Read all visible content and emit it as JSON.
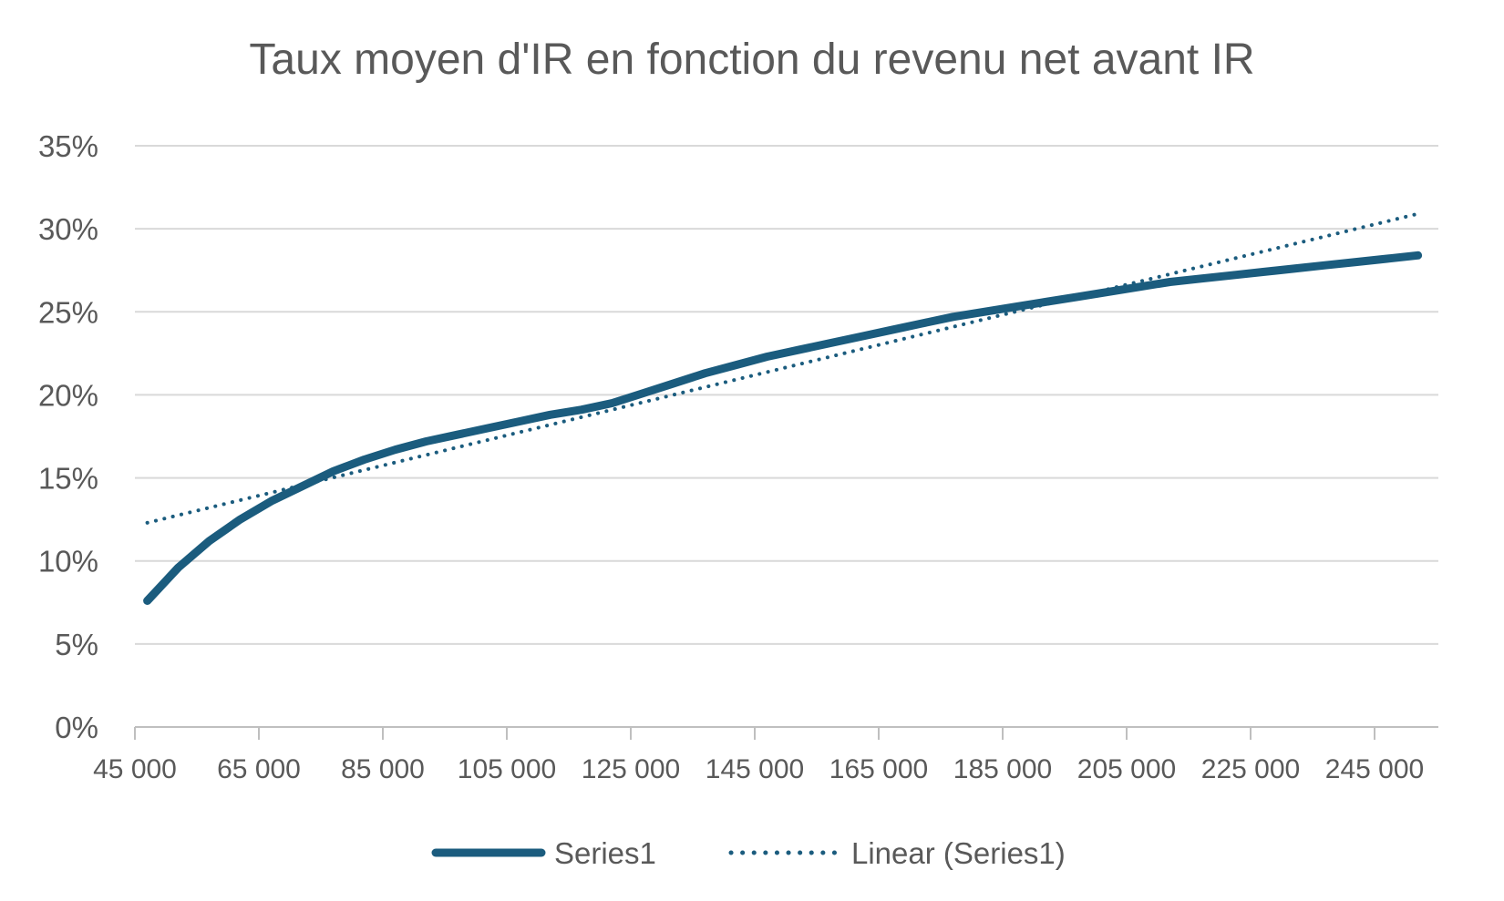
{
  "chart_data": {
    "type": "line",
    "title": "Taux moyen d'IR en fonction du revenu net avant IR",
    "xlabel": "",
    "ylabel": "",
    "x_ticks": [
      "45 000",
      "65 000",
      "85 000",
      "105 000",
      "125 000",
      "145 000",
      "165 000",
      "185 000",
      "205 000",
      "225 000",
      "245 000"
    ],
    "x_tick_values": [
      45000,
      65000,
      85000,
      105000,
      125000,
      145000,
      165000,
      185000,
      205000,
      225000,
      245000
    ],
    "y_ticks": [
      "0%",
      "5%",
      "10%",
      "15%",
      "20%",
      "25%",
      "30%",
      "35%"
    ],
    "y_tick_values": [
      0,
      0.05,
      0.1,
      0.15,
      0.2,
      0.25,
      0.3,
      0.35
    ],
    "xlim": [
      45000,
      250000
    ],
    "ylim": [
      0,
      0.35
    ],
    "grid": true,
    "legend_position": "bottom",
    "colors": {
      "series": "#1b5c7e",
      "grid": "#d9d9d9",
      "axis": "#bfbfbf",
      "text": "#595959"
    },
    "series": [
      {
        "name": "Series1",
        "style": "solid",
        "x": [
          47000,
          52000,
          57000,
          62000,
          67000,
          72000,
          77000,
          82000,
          87000,
          92000,
          97000,
          102000,
          107000,
          112000,
          117000,
          122000,
          127000,
          132000,
          137000,
          142000,
          147000,
          152000,
          157000,
          162000,
          167000,
          172000,
          177000,
          182000,
          187000,
          192000,
          197000,
          202000,
          207000,
          212000,
          217000,
          222000,
          227000,
          232000,
          237000,
          242000,
          247000,
          252000
        ],
        "values": [
          0.076,
          0.096,
          0.112,
          0.125,
          0.136,
          0.145,
          0.154,
          0.161,
          0.167,
          0.172,
          0.176,
          0.18,
          0.184,
          0.188,
          0.191,
          0.195,
          0.201,
          0.207,
          0.213,
          0.218,
          0.223,
          0.227,
          0.231,
          0.235,
          0.239,
          0.243,
          0.247,
          0.25,
          0.253,
          0.256,
          0.259,
          0.262,
          0.265,
          0.268,
          0.27,
          0.272,
          0.274,
          0.276,
          0.278,
          0.28,
          0.282,
          0.284
        ]
      },
      {
        "name": "Linear (Series1)",
        "style": "dotted",
        "x": [
          47000,
          252000
        ],
        "values": [
          0.123,
          0.309
        ]
      }
    ]
  }
}
